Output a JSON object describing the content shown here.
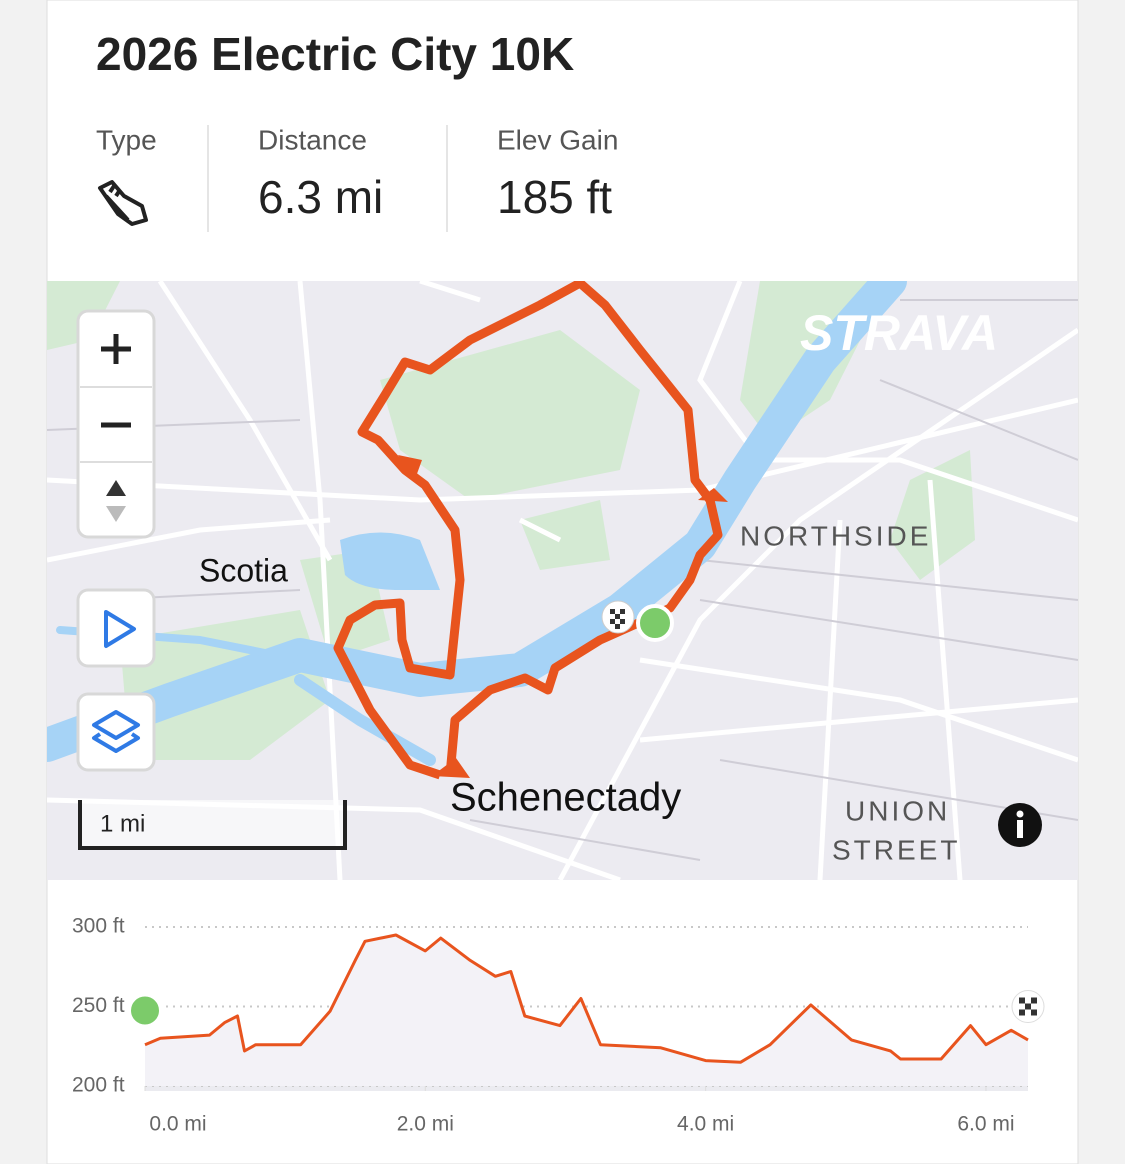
{
  "header": {
    "title": "2026 Electric City 10K"
  },
  "stats": [
    {
      "label": "Type"
    },
    {
      "label": "Distance",
      "value": "6.3 mi"
    },
    {
      "label": "Elev Gain",
      "value": "185 ft"
    }
  ],
  "map": {
    "brand": "STRAVA",
    "labels": [
      "Scotia",
      "NORTHSIDE",
      "Schenectady",
      "UNION",
      "STREET"
    ],
    "scale": "1 mi"
  },
  "elevation": {
    "type": "line",
    "color": "#e8541e",
    "x": [
      0,
      0.11,
      0.46,
      0.57,
      0.66,
      0.71,
      0.79,
      1.11,
      1.32,
      1.5,
      1.57,
      1.79,
      2.0,
      2.11,
      2.32,
      2.5,
      2.61,
      2.71,
      2.96,
      3.11,
      3.25,
      3.68,
      4.0,
      4.25,
      4.46,
      4.75,
      5.04,
      5.32,
      5.39,
      5.68,
      5.89,
      6.0,
      6.18,
      6.3
    ],
    "values": [
      226,
      230,
      232,
      240,
      244,
      222,
      226,
      226,
      247,
      279,
      291,
      295,
      285,
      293,
      279,
      269,
      272,
      244,
      238,
      255,
      226,
      224,
      216,
      215,
      226,
      251,
      229,
      222,
      217,
      217,
      238,
      226,
      235,
      229
    ],
    "xlim": [
      0,
      6.3
    ],
    "ylim": [
      200,
      300
    ],
    "xticks": [
      {
        "value": 0,
        "label": "0.0 mi"
      },
      {
        "value": 2,
        "label": "2.0 mi"
      },
      {
        "value": 4,
        "label": "4.0 mi"
      },
      {
        "value": 6,
        "label": "6.0 mi"
      }
    ],
    "yticks": [
      {
        "value": 200,
        "label": "200 ft"
      },
      {
        "value": 250,
        "label": "250 ft"
      },
      {
        "value": 300,
        "label": "300 ft"
      }
    ],
    "grid": true
  }
}
